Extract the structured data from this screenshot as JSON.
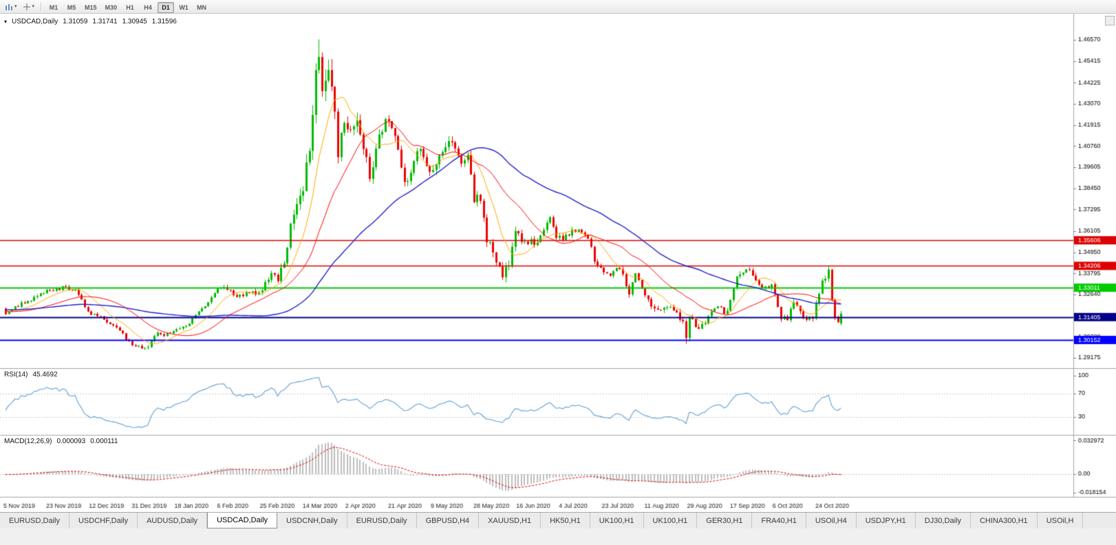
{
  "toolbar": {
    "icons": [
      {
        "name": "chart-type-icon",
        "caret": "▾"
      },
      {
        "name": "crosshair-tool-icon",
        "caret": "▾"
      }
    ],
    "timeframes": [
      {
        "label": "M1",
        "active": false
      },
      {
        "label": "M5",
        "active": false
      },
      {
        "label": "M15",
        "active": false
      },
      {
        "label": "M30",
        "active": false
      },
      {
        "label": "H1",
        "active": false
      },
      {
        "label": "H4",
        "active": false
      },
      {
        "label": "D1",
        "active": true
      },
      {
        "label": "W1",
        "active": false
      },
      {
        "label": "MN",
        "active": false
      }
    ]
  },
  "chart_header": {
    "caret": "▾",
    "symbol_period": "USDCAD,Daily",
    "open": "1.31059",
    "high": "1.31741",
    "low": "1.30945",
    "close": "1.31596"
  },
  "indicators": {
    "rsi_label": "RSI(14)",
    "rsi_value": "45.4692",
    "macd_label": "MACD(12,26,9)",
    "macd_main": "0.000093",
    "macd_signal": "0.000111"
  },
  "bottom_tabs": {
    "items": [
      {
        "label": "EURUSD,Daily",
        "active": false
      },
      {
        "label": "USDCHF,Daily",
        "active": false
      },
      {
        "label": "AUDUSD,Daily",
        "active": false
      },
      {
        "label": "USDCAD,Daily",
        "active": true
      },
      {
        "label": "USDCNH,Daily",
        "active": false
      },
      {
        "label": "EURUSD,Daily",
        "active": false
      },
      {
        "label": "GBPUSD,H4",
        "active": false
      },
      {
        "label": "XAUUSD,H1",
        "active": false
      },
      {
        "label": "HK50,H1",
        "active": false
      },
      {
        "label": "UK100,H1",
        "active": false
      },
      {
        "label": "UK100,H1",
        "active": false
      },
      {
        "label": "GER30,H1",
        "active": false
      },
      {
        "label": "FRA40,H1",
        "active": false
      },
      {
        "label": "USOil,H4",
        "active": false
      },
      {
        "label": "USDJPY,H1",
        "active": false
      },
      {
        "label": "DJ30,Daily",
        "active": false
      },
      {
        "label": "CHINA300,H1",
        "active": false
      },
      {
        "label": "USOil,H",
        "active": false
      }
    ]
  },
  "chart_data": {
    "type": "candlestick",
    "symbol": "USDCAD",
    "period": "Daily",
    "last_bar": {
      "open": 1.31059,
      "high": 1.31741,
      "low": 1.30945,
      "close": 1.31596
    },
    "y_axis_ticks": [
      "1.46570",
      "1.45415",
      "1.44225",
      "1.43070",
      "1.41915",
      "1.40760",
      "1.39605",
      "1.38450",
      "1.37295",
      "1.36105",
      "1.34950",
      "1.33795",
      "1.32640",
      "1.31485",
      "1.30330",
      "1.29175"
    ],
    "x_axis_ticks": [
      "5 Nov 2019",
      "23 Nov 2019",
      "12 Dec 2019",
      "31 Dec 2019",
      "18 Jan 2020",
      "6 Feb 2020",
      "25 Feb 2020",
      "14 Mar 2020",
      "2 Apr 2020",
      "21 Apr 2020",
      "9 May 2020",
      "28 May 2020",
      "16 Jun 2020",
      "4 Jul 2020",
      "23 Jul 2020",
      "11 Aug 2020",
      "29 Aug 2020",
      "17 Sep 2020",
      "6 Oct 2020",
      "24 Oct 2020"
    ],
    "x_tick_step_candles": 13.5,
    "horizontal_lines": [
      {
        "price": "1.35606",
        "color": "#dd0000",
        "width": 1.4
      },
      {
        "price": "1.34206",
        "color": "#dd0000",
        "width": 1.4
      },
      {
        "price": "1.33011",
        "color": "#00cc00",
        "width": 2
      },
      {
        "price": "1.31405",
        "color": "#000088",
        "width": 2
      },
      {
        "price": "1.30152",
        "color": "#0000ff",
        "width": 2
      }
    ],
    "colors": {
      "bull": "#00b900",
      "bear": "#ee0000",
      "ma_fast": "#ffaa00",
      "ma_mid": "#ff0000",
      "ma_slow": "#2020cc",
      "rsi": "#5e9fd4",
      "macd_hist": "#bdbdbd",
      "macd_signal": "#dd0000"
    },
    "price_anchors": [
      [
        0,
        1.3165
      ],
      [
        4,
        1.3205
      ],
      [
        9,
        1.3245
      ],
      [
        13,
        1.328
      ],
      [
        18,
        1.33
      ],
      [
        22,
        1.329
      ],
      [
        26,
        1.317
      ],
      [
        31,
        1.313
      ],
      [
        35,
        1.308
      ],
      [
        40,
        1.2985
      ],
      [
        44,
        1.2962
      ],
      [
        48,
        1.305
      ],
      [
        52,
        1.3045
      ],
      [
        54,
        1.3065
      ],
      [
        58,
        1.311
      ],
      [
        63,
        1.32
      ],
      [
        67,
        1.329
      ],
      [
        70,
        1.33
      ],
      [
        73,
        1.3255
      ],
      [
        77,
        1.3265
      ],
      [
        81,
        1.329
      ],
      [
        84,
        1.339
      ],
      [
        86,
        1.335
      ],
      [
        88,
        1.3425
      ],
      [
        90,
        1.366
      ],
      [
        92,
        1.374
      ],
      [
        94,
        1.3855
      ],
      [
        96,
        1.403
      ],
      [
        98,
        1.448
      ],
      [
        99,
        1.46
      ],
      [
        100,
        1.443
      ],
      [
        102,
        1.449
      ],
      [
        104,
        1.426
      ],
      [
        105,
        1.4015
      ],
      [
        107,
        1.42
      ],
      [
        109,
        1.4125
      ],
      [
        111,
        1.423
      ],
      [
        113,
        1.4065
      ],
      [
        115,
        1.3895
      ],
      [
        117,
        1.409
      ],
      [
        119,
        1.417
      ],
      [
        121,
        1.4215
      ],
      [
        124,
        1.4055
      ],
      [
        126,
        1.3875
      ],
      [
        128,
        1.3945
      ],
      [
        131,
        1.407
      ],
      [
        133,
        1.3985
      ],
      [
        135,
        1.3925
      ],
      [
        138,
        1.4055
      ],
      [
        140,
        1.4115
      ],
      [
        142,
        1.4055
      ],
      [
        144,
        1.3975
      ],
      [
        146,
        1.4005
      ],
      [
        148,
        1.3785
      ],
      [
        150,
        1.3795
      ],
      [
        152,
        1.3575
      ],
      [
        154,
        1.3505
      ],
      [
        156,
        1.3425
      ],
      [
        157,
        1.3375
      ],
      [
        159,
        1.3415
      ],
      [
        161,
        1.3625
      ],
      [
        163,
        1.3545
      ],
      [
        166,
        1.3565
      ],
      [
        168,
        1.3535
      ],
      [
        170,
        1.3635
      ],
      [
        172,
        1.369
      ],
      [
        174,
        1.3585
      ],
      [
        176,
        1.3555
      ],
      [
        179,
        1.362
      ],
      [
        181,
        1.3618
      ],
      [
        184,
        1.3585
      ],
      [
        186,
        1.3455
      ],
      [
        188,
        1.3408
      ],
      [
        191,
        1.3365
      ],
      [
        194,
        1.3415
      ],
      [
        197,
        1.327
      ],
      [
        199,
        1.3388
      ],
      [
        201,
        1.331
      ],
      [
        203,
        1.3225
      ],
      [
        206,
        1.3165
      ],
      [
        208,
        1.3208
      ],
      [
        211,
        1.3185
      ],
      [
        214,
        1.3098
      ],
      [
        215,
        1.3045
      ],
      [
        216,
        1.314
      ],
      [
        219,
        1.3065
      ],
      [
        221,
        1.3105
      ],
      [
        223,
        1.3165
      ],
      [
        225,
        1.3188
      ],
      [
        228,
        1.3165
      ],
      [
        230,
        1.3315
      ],
      [
        232,
        1.3382
      ],
      [
        234,
        1.3388
      ],
      [
        236,
        1.3382
      ],
      [
        238,
        1.3325
      ],
      [
        240,
        1.3295
      ],
      [
        242,
        1.3315
      ],
      [
        244,
        1.3195
      ],
      [
        245,
        1.3125
      ],
      [
        247,
        1.3135
      ],
      [
        249,
        1.3218
      ],
      [
        250,
        1.3195
      ],
      [
        252,
        1.3128
      ],
      [
        254,
        1.3145
      ],
      [
        255,
        1.3128
      ],
      [
        256,
        1.3212
      ],
      [
        258,
        1.3325
      ],
      [
        259,
        1.3335
      ],
      [
        260,
        1.3392
      ],
      [
        261,
        1.3255
      ],
      [
        262,
        1.3148
      ],
      [
        263,
        1.3106
      ],
      [
        264,
        1.316
      ]
    ],
    "volatility_anchors": [
      [
        0,
        0.0016
      ],
      [
        30,
        0.002
      ],
      [
        45,
        0.002
      ],
      [
        60,
        0.0016
      ],
      [
        80,
        0.0026
      ],
      [
        86,
        0.004
      ],
      [
        92,
        0.007
      ],
      [
        97,
        0.01
      ],
      [
        101,
        0.0115
      ],
      [
        106,
        0.009
      ],
      [
        112,
        0.0068
      ],
      [
        120,
        0.0058
      ],
      [
        130,
        0.005
      ],
      [
        140,
        0.0046
      ],
      [
        150,
        0.0048
      ],
      [
        158,
        0.0048
      ],
      [
        165,
        0.0038
      ],
      [
        175,
        0.0028
      ],
      [
        188,
        0.0028
      ],
      [
        200,
        0.003
      ],
      [
        212,
        0.0032
      ],
      [
        216,
        0.004
      ],
      [
        224,
        0.0026
      ],
      [
        232,
        0.003
      ],
      [
        240,
        0.0028
      ],
      [
        248,
        0.0028
      ],
      [
        256,
        0.003
      ],
      [
        260,
        0.0036
      ],
      [
        264,
        0.0036
      ]
    ],
    "candle_overrides": {
      "99": {
        "h": 1.466
      },
      "215": {
        "l": 1.2994
      },
      "264": {
        "o": 1.31059,
        "h": 1.31741,
        "l": 1.30945,
        "c": 1.31596
      }
    },
    "rsi": {
      "period": 14,
      "last_value": "45.4692",
      "levels": [
        "100",
        "70",
        "30"
      ]
    },
    "macd": {
      "fast": 12,
      "slow": 26,
      "signal": 9,
      "last_main": "0.000093",
      "last_signal": "0.000111",
      "axis_ticks": [
        "0.032972",
        "0.00",
        "-0.018154"
      ]
    }
  }
}
